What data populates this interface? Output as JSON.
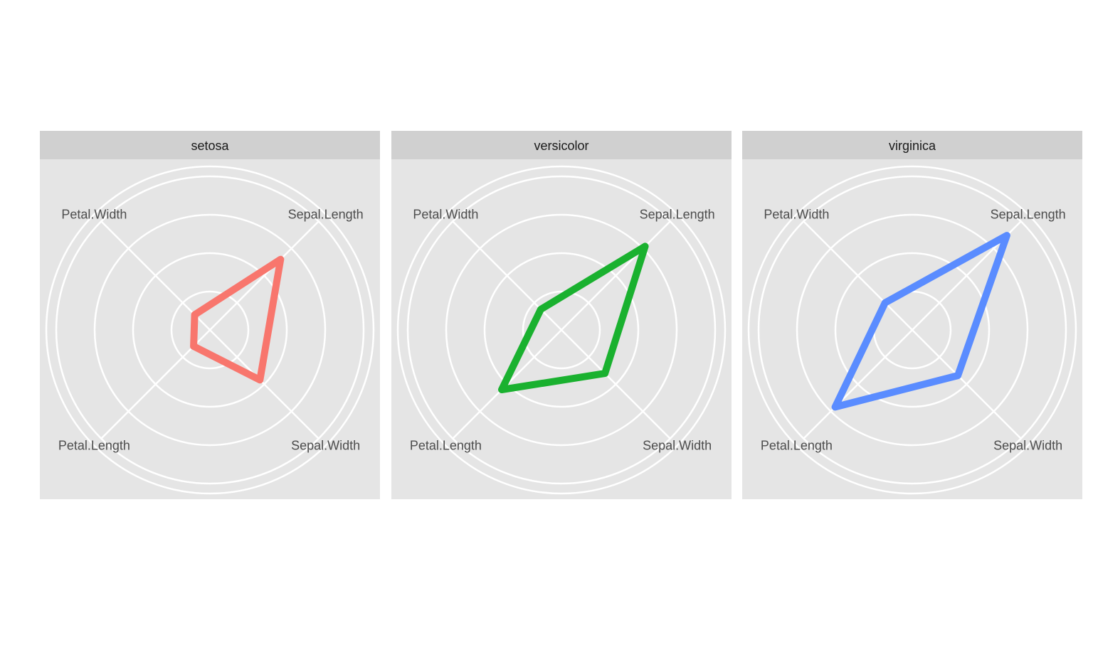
{
  "chart_data": {
    "type": "radar",
    "title": "",
    "axes": [
      "Sepal.Length",
      "Sepal.Width",
      "Petal.Length",
      "Petal.Width"
    ],
    "radial_range": [
      0,
      1
    ],
    "radial_breaks": [
      0.25,
      0.5,
      0.75,
      1.0
    ],
    "grid": true,
    "legend": "none",
    "panels": [
      {
        "name": "setosa",
        "color": "#F8766D",
        "values": [
          0.65,
          0.46,
          0.15,
          0.14
        ]
      },
      {
        "name": "versicolor",
        "color": "#1AB12F",
        "values": [
          0.77,
          0.4,
          0.55,
          0.19
        ]
      },
      {
        "name": "virginica",
        "color": "#5A8CFF",
        "values": [
          0.87,
          0.42,
          0.71,
          0.25
        ]
      }
    ]
  },
  "colors": {
    "panel_background": "#E5E5E5",
    "strip_background": "#D0D0D0",
    "grid_line": "#FFFFFF",
    "axis_text": "#4D4D4D",
    "strip_text": "#1A1A1A"
  }
}
